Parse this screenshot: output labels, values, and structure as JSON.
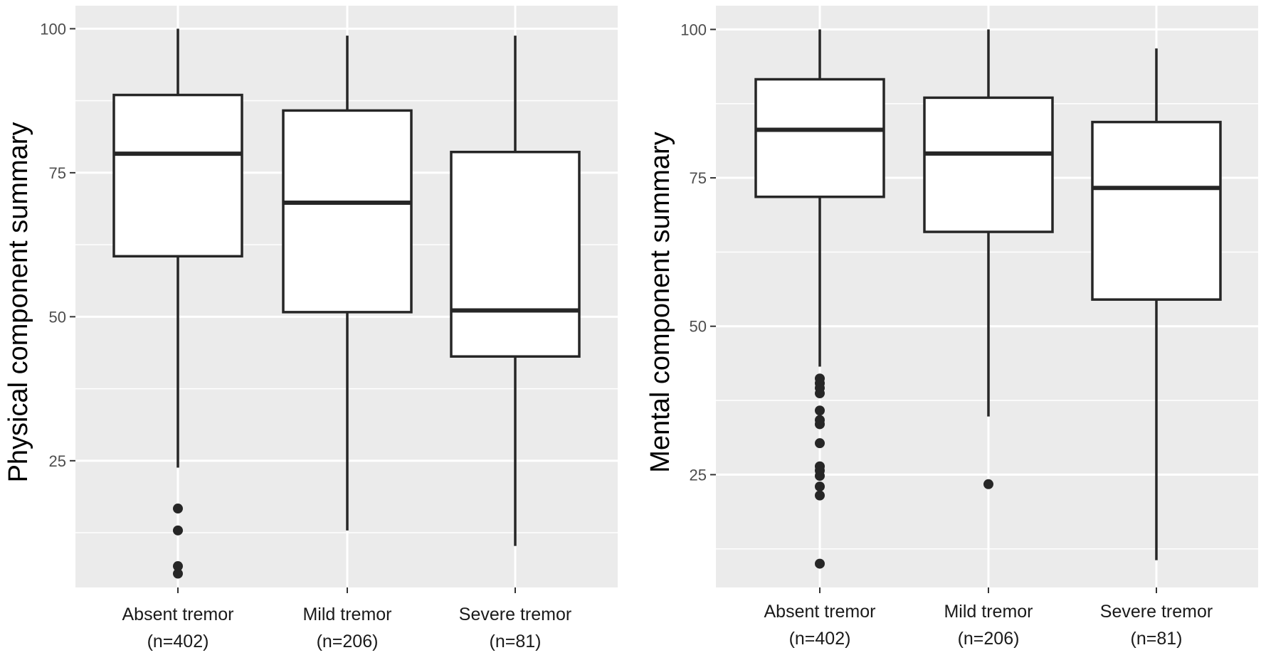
{
  "chart_data": [
    {
      "type": "box",
      "ylabel": "Physical component summary",
      "ylim": [
        3,
        104
      ],
      "yticks": [
        25,
        50,
        75,
        100
      ],
      "grid": true,
      "categories": [
        {
          "name": "Absent tremor",
          "n": "(n=402)"
        },
        {
          "name": "Mild tremor",
          "n": "(n=206)"
        },
        {
          "name": "Severe tremor",
          "n": "(n=81)"
        }
      ],
      "boxes": [
        {
          "whisker_low": 23.8,
          "q1": 60.5,
          "median": 78.3,
          "q3": 88.5,
          "whisker_high": 100,
          "outliers": [
            16.7,
            12.9,
            6.7,
            5.4
          ]
        },
        {
          "whisker_low": 12.9,
          "q1": 50.8,
          "median": 69.8,
          "q3": 85.8,
          "whisker_high": 98.8,
          "outliers": []
        },
        {
          "whisker_low": 10.2,
          "q1": 43.1,
          "median": 51.1,
          "q3": 78.6,
          "whisker_high": 98.8,
          "outliers": []
        }
      ]
    },
    {
      "type": "box",
      "ylabel": "Mental component summary",
      "ylim": [
        6,
        104
      ],
      "yticks": [
        25,
        50,
        75,
        100
      ],
      "grid": true,
      "categories": [
        {
          "name": "Absent tremor",
          "n": "(n=402)"
        },
        {
          "name": "Mild tremor",
          "n": "(n=206)"
        },
        {
          "name": "Severe tremor",
          "n": "(n=81)"
        }
      ],
      "boxes": [
        {
          "whisker_low": 43.2,
          "q1": 71.8,
          "median": 83.1,
          "q3": 91.6,
          "whisker_high": 100,
          "outliers": [
            41.2,
            40.4,
            39.6,
            38.7,
            35.8,
            34.2,
            33.5,
            30.3,
            26.4,
            25.7,
            24.8,
            23.0,
            21.5,
            10.0
          ]
        },
        {
          "whisker_low": 34.8,
          "q1": 65.9,
          "median": 79.1,
          "q3": 88.5,
          "whisker_high": 100,
          "outliers": [
            23.4
          ]
        },
        {
          "whisker_low": 10.6,
          "q1": 54.5,
          "median": 73.3,
          "q3": 84.4,
          "whisker_high": 96.8,
          "outliers": []
        }
      ]
    }
  ]
}
